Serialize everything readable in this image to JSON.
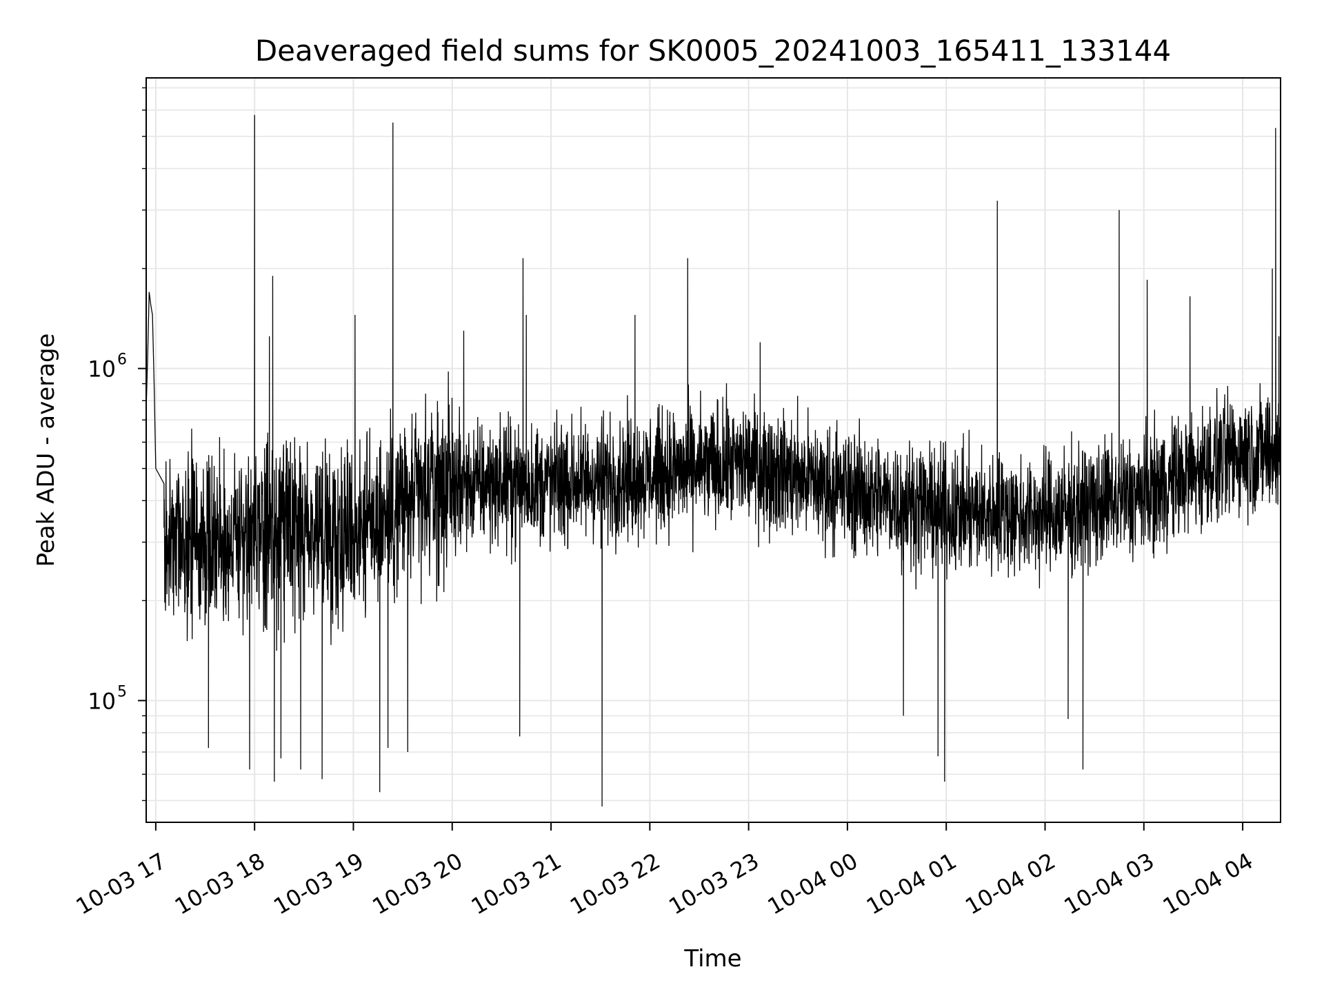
{
  "chart_data": {
    "type": "line",
    "title": "Deaveraged field sums for SK0005_20241003_165411_133144",
    "xlabel": "Time",
    "ylabel": "Peak ADU - average",
    "x_scale": "time",
    "y_scale": "log",
    "xlim": [
      "2024-10-03 16:54:11",
      "2024-10-04 04:23:00"
    ],
    "ylim": [
      43000,
      7500000
    ],
    "x_ticks": [
      "10-03 17",
      "10-03 18",
      "10-03 19",
      "10-03 20",
      "10-03 21",
      "10-03 22",
      "10-03 23",
      "10-04 00",
      "10-04 01",
      "10-04 02",
      "10-04 03",
      "10-04 04"
    ],
    "y_ticks": [
      {
        "value": 100000,
        "base": "10",
        "exp": "5"
      },
      {
        "value": 1000000,
        "base": "10",
        "exp": "6"
      }
    ],
    "grid": true,
    "legend": "none",
    "line_color": "#000000",
    "grid_color": "#e6e6e6",
    "series": [
      {
        "hourly_median": [
          [
            "2024-10-03 17:00",
            300000
          ],
          [
            "2024-10-03 18:00",
            310000
          ],
          [
            "2024-10-03 19:00",
            330000
          ],
          [
            "2024-10-03 20:00",
            450000
          ],
          [
            "2024-10-03 21:00",
            450000
          ],
          [
            "2024-10-03 22:00",
            480000
          ],
          [
            "2024-10-03 23:00",
            520000
          ],
          [
            "2024-10-04 00:00",
            430000
          ],
          [
            "2024-10-04 01:00",
            370000
          ],
          [
            "2024-10-04 02:00",
            360000
          ],
          [
            "2024-10-04 03:00",
            420000
          ],
          [
            "2024-10-04 04:00",
            560000
          ]
        ],
        "early_segment": [
          [
            "2024-10-03 16:54",
            700000
          ],
          [
            "2024-10-03 16:55",
            1050000
          ],
          [
            "2024-10-03 16:56",
            1700000
          ],
          [
            "2024-10-03 16:57",
            1550000
          ],
          [
            "2024-10-03 16:58",
            1450000
          ],
          [
            "2024-10-03 16:59",
            900000
          ],
          [
            "2024-10-03 17:00",
            500000
          ],
          [
            "2024-10-03 17:05",
            450000
          ]
        ],
        "spikes": [
          [
            "2024-10-03 18:00",
            5800000
          ],
          [
            "2024-10-03 18:11",
            1900000
          ],
          [
            "2024-10-03 18:09",
            1250000
          ],
          [
            "2024-10-03 19:01",
            1450000
          ],
          [
            "2024-10-03 19:24",
            5500000
          ],
          [
            "2024-10-03 20:07",
            1300000
          ],
          [
            "2024-10-03 20:43",
            2150000
          ],
          [
            "2024-10-03 20:45",
            1450000
          ],
          [
            "2024-10-03 21:51",
            1450000
          ],
          [
            "2024-10-03 22:23",
            2150000
          ],
          [
            "2024-10-03 23:07",
            1200000
          ],
          [
            "2024-10-04 01:31",
            3200000
          ],
          [
            "2024-10-04 02:45",
            3000000
          ],
          [
            "2024-10-04 03:02",
            1850000
          ],
          [
            "2024-10-04 03:28",
            1650000
          ],
          [
            "2024-10-04 04:20",
            5300000
          ],
          [
            "2024-10-04 04:18",
            2000000
          ],
          [
            "2024-10-04 04:22",
            1250000
          ]
        ],
        "dips": [
          [
            "2024-10-03 17:32",
            72000
          ],
          [
            "2024-10-03 17:57",
            62000
          ],
          [
            "2024-10-03 18:12",
            57000
          ],
          [
            "2024-10-03 18:16",
            67000
          ],
          [
            "2024-10-03 18:28",
            62000
          ],
          [
            "2024-10-03 18:41",
            58000
          ],
          [
            "2024-10-03 19:16",
            53000
          ],
          [
            "2024-10-03 19:21",
            72000
          ],
          [
            "2024-10-03 19:33",
            70000
          ],
          [
            "2024-10-03 20:41",
            78000
          ],
          [
            "2024-10-03 21:31",
            48000
          ],
          [
            "2024-10-04 00:55",
            68000
          ],
          [
            "2024-10-04 00:59",
            57000
          ],
          [
            "2024-10-04 00:34",
            90000
          ],
          [
            "2024-10-04 02:14",
            88000
          ],
          [
            "2024-10-04 02:23",
            62000
          ]
        ]
      }
    ]
  }
}
